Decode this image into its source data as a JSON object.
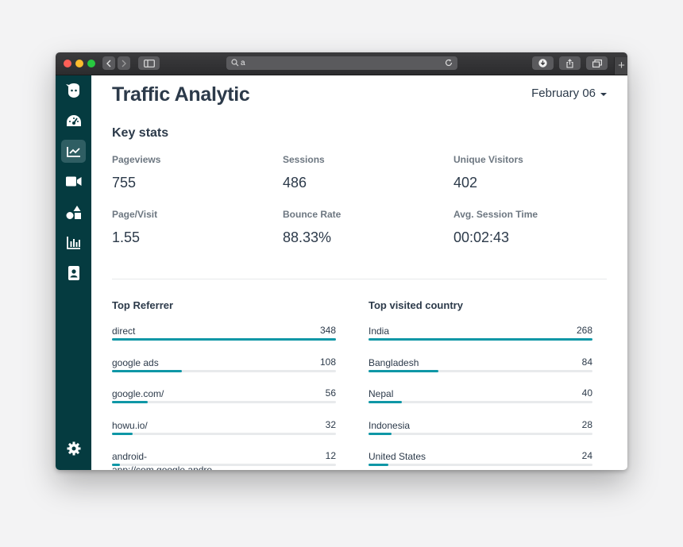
{
  "browser": {
    "url": "a"
  },
  "colors": {
    "sidebar": "#053b40",
    "accent": "#0f97a6",
    "text": "#2c3a4a"
  },
  "sidebar": {
    "items": [
      {
        "icon": "logo-face-icon"
      },
      {
        "icon": "dashboard-gauge-icon"
      },
      {
        "icon": "trend-chart-icon",
        "active": true
      },
      {
        "icon": "video-camera-icon"
      },
      {
        "icon": "shapes-icon"
      },
      {
        "icon": "bar-chart-icon"
      },
      {
        "icon": "contact-book-icon"
      }
    ],
    "footer_icon": "gear-icon"
  },
  "header": {
    "title": "Traffic Analytic",
    "date": "February 06"
  },
  "key_stats": {
    "title": "Key stats",
    "items": [
      {
        "label": "Pageviews",
        "value": "755"
      },
      {
        "label": "Sessions",
        "value": "486"
      },
      {
        "label": "Unique Visitors",
        "value": "402"
      },
      {
        "label": "Page/Visit",
        "value": "1.55"
      },
      {
        "label": "Bounce Rate",
        "value": "88.33%"
      },
      {
        "label": "Avg. Session Time",
        "value": "00:02:43"
      }
    ]
  },
  "top_referrer": {
    "title": "Top Referrer",
    "rows": [
      {
        "name": "direct",
        "value": 348
      },
      {
        "name": "google ads",
        "value": 108
      },
      {
        "name": "google.com/",
        "value": 56
      },
      {
        "name": "howu.io/",
        "value": 32
      },
      {
        "name": "android-app://com.google.andro",
        "value": 12
      }
    ]
  },
  "top_country": {
    "title": "Top visited country",
    "rows": [
      {
        "name": "India",
        "value": 268
      },
      {
        "name": "Bangladesh",
        "value": 84
      },
      {
        "name": "Nepal",
        "value": 40
      },
      {
        "name": "Indonesia",
        "value": 28
      },
      {
        "name": "United States",
        "value": 24
      }
    ]
  }
}
